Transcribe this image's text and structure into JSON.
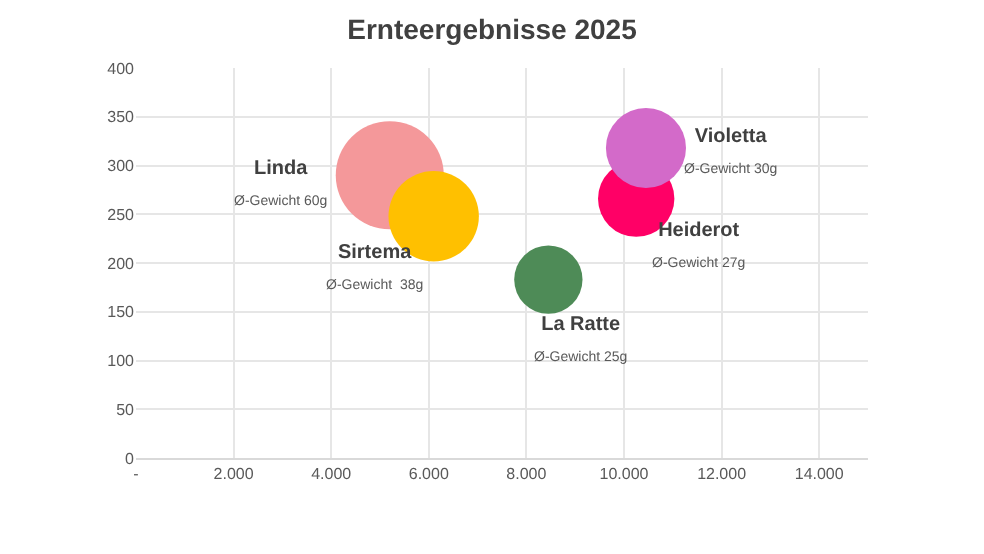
{
  "chart_data": {
    "type": "bubble",
    "title": "Ernteergebnisse 2025",
    "series": [
      {
        "name": "Linda",
        "color": "#f4989a",
        "x": [
          5200
        ],
        "values": [
          290
        ],
        "sizes": [
          1
        ],
        "value_labels": [
          "Ø-Gewicht 60g"
        ]
      },
      {
        "name": "Sirtema",
        "color": "#ffc000",
        "x": [
          6100
        ],
        "values": [
          248
        ],
        "sizes": [
          0.7
        ],
        "value_labels": [
          "Ø-Gewicht  38g"
        ]
      },
      {
        "name": "La Ratte",
        "color": "#4e8b57",
        "x": [
          8450
        ],
        "values": [
          183
        ],
        "sizes": [
          0.4
        ],
        "value_labels": [
          "Ø-Gewicht 25g"
        ]
      },
      {
        "name": "Heiderot",
        "color": "#ff0066",
        "x": [
          10250
        ],
        "values": [
          266
        ],
        "sizes": [
          0.5
        ],
        "value_labels": [
          "Ø-Gewicht 27g"
        ]
      },
      {
        "name": "Violetta",
        "color": "#d36ac9",
        "x": [
          10450
        ],
        "values": [
          318
        ],
        "sizes": [
          0.55
        ],
        "value_labels": [
          "Ø-Gewicht 30g"
        ]
      }
    ],
    "xlim": [
      0,
      15000
    ],
    "xticks": [
      {
        "value": 0,
        "label": "-"
      },
      {
        "value": 2000,
        "label": "2.000"
      },
      {
        "value": 4000,
        "label": "4.000"
      },
      {
        "value": 6000,
        "label": "6.000"
      },
      {
        "value": 8000,
        "label": "8.000"
      },
      {
        "value": 10000,
        "label": "10.000"
      },
      {
        "value": 12000,
        "label": "12.000"
      },
      {
        "value": 14000,
        "label": "14.000"
      }
    ],
    "ylim": [
      0,
      400
    ],
    "yticks": [
      0,
      50,
      100,
      150,
      200,
      250,
      300,
      350,
      400
    ],
    "grid": true,
    "legend": false
  }
}
